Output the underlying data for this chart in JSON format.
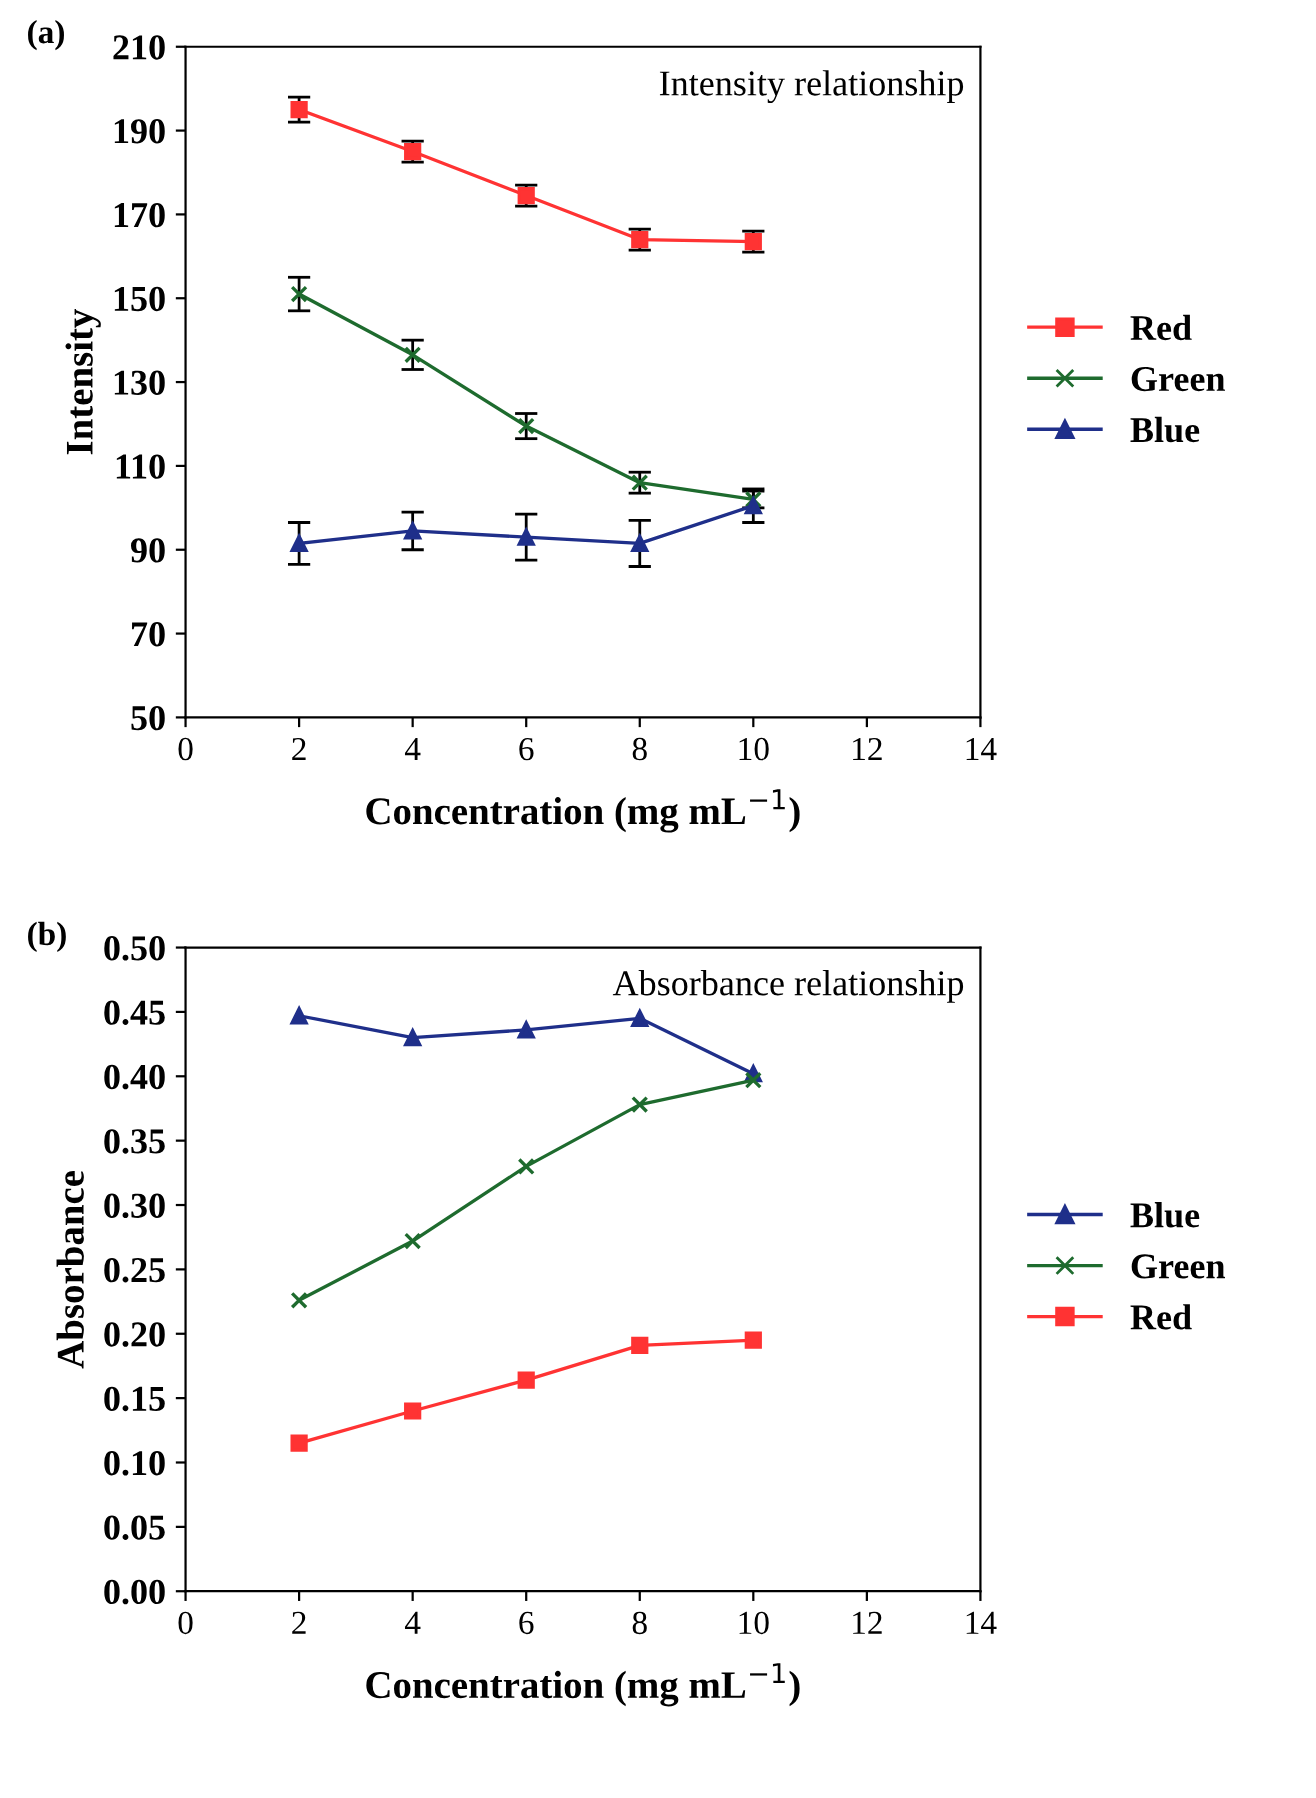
{
  "chart_data": [
    {
      "type": "line",
      "title": "(a)",
      "xlabel": "Concentration (mg mL$^{−1}$)",
      "ylabel": "Intensity",
      "annotations": [
        "Intensity relationship"
      ],
      "x": [
        2,
        4,
        6,
        8,
        10
      ],
      "xlim": [
        0,
        14
      ],
      "xticks": [
        0,
        2,
        4,
        6,
        8,
        10,
        12,
        14
      ],
      "ylim": [
        50,
        210
      ],
      "yticks": [
        50,
        70,
        90,
        110,
        130,
        150,
        170,
        190,
        210
      ],
      "grid": false,
      "legend": "right",
      "series": [
        {
          "name": "Red",
          "color": "#ff3333",
          "marker": "square",
          "values": [
            195,
            185,
            174.5,
            164,
            163.5
          ],
          "errors": [
            3,
            2.5,
            2.5,
            2.5,
            2.5
          ]
        },
        {
          "name": "Green",
          "color": "#1e6b2e",
          "marker": "cross",
          "values": [
            151,
            136.5,
            119.5,
            106,
            102
          ],
          "errors": [
            4,
            3.5,
            3,
            2.5,
            2
          ]
        },
        {
          "name": "Blue",
          "color": "#1f2f8a",
          "marker": "triangle",
          "values": [
            91.5,
            94.5,
            93,
            91.5,
            100.5
          ],
          "errors": [
            5,
            4.5,
            5.5,
            5.5,
            4
          ]
        }
      ]
    },
    {
      "type": "line",
      "title": "(b)",
      "xlabel": "Concentration (mg mL$^{−1}$)",
      "ylabel": "Absorbance",
      "annotations": [
        "Absorbance relationship"
      ],
      "x": [
        2,
        4,
        6,
        8,
        10
      ],
      "xlim": [
        0,
        14
      ],
      "xticks": [
        0,
        2,
        4,
        6,
        8,
        10,
        12,
        14
      ],
      "ylim": [
        0,
        0.5
      ],
      "yticks": [
        {
          "value": 0,
          "label": "0.00"
        },
        {
          "value": 0.05,
          "label": "0.05"
        },
        {
          "value": 0.1,
          "label": "0.10"
        },
        {
          "value": 0.15,
          "label": "0.15"
        },
        {
          "value": 0.2,
          "label": "0.20"
        },
        {
          "value": 0.25,
          "label": "0.25"
        },
        {
          "value": 0.3,
          "label": "0.30"
        },
        {
          "value": 0.35,
          "label": "0.35"
        },
        {
          "value": 0.4,
          "label": "0.40"
        },
        {
          "value": 0.45,
          "label": "0.45"
        },
        {
          "value": 0.5,
          "label": "0.50"
        }
      ],
      "grid": false,
      "legend": "right",
      "series": [
        {
          "name": "Blue",
          "color": "#1f2f8a",
          "marker": "triangle",
          "values": [
            0.447,
            0.43,
            0.436,
            0.445,
            0.402
          ]
        },
        {
          "name": "Green",
          "color": "#1e6b2e",
          "marker": "cross",
          "values": [
            0.226,
            0.272,
            0.33,
            0.378,
            0.397
          ]
        },
        {
          "name": "Red",
          "color": "#ff3333",
          "marker": "square",
          "values": [
            0.115,
            0.14,
            0.164,
            0.191,
            0.195
          ]
        }
      ]
    }
  ]
}
